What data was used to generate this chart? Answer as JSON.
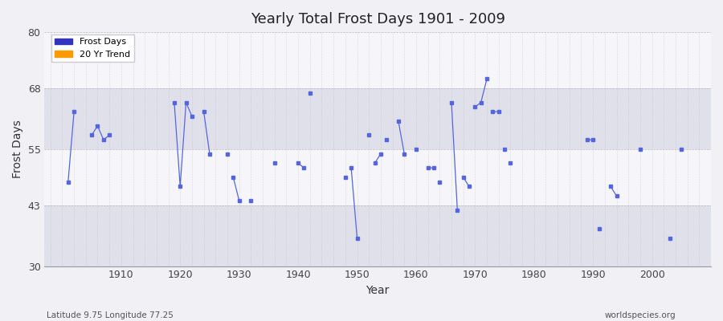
{
  "title": "Yearly Total Frost Days 1901 - 2009",
  "xlabel": "Year",
  "ylabel": "Frost Days",
  "subtitle": "Latitude 9.75 Longitude 77.25",
  "watermark": "worldspecies.org",
  "ylim": [
    30,
    80
  ],
  "yticks": [
    30,
    43,
    55,
    68,
    80
  ],
  "xticks": [
    1910,
    1920,
    1930,
    1940,
    1950,
    1960,
    1970,
    1980,
    1990,
    2000
  ],
  "legend_labels": [
    "Frost Days",
    "20 Yr Trend"
  ],
  "legend_colors": [
    "#3333bb",
    "#ff9900"
  ],
  "line_color": "#5566dd",
  "bg_color": "#f0f0f5",
  "plot_bg_light": "#f5f5fa",
  "plot_bg_dark": "#e0e0ea",
  "xlim": [
    1897,
    2010
  ],
  "data": [
    [
      1901,
      48
    ],
    [
      1902,
      63
    ],
    [
      null,
      null
    ],
    [
      1905,
      58
    ],
    [
      1906,
      60
    ],
    [
      1907,
      57
    ],
    [
      1908,
      58
    ],
    [
      null,
      null
    ],
    [
      1919,
      65
    ],
    [
      1920,
      47
    ],
    [
      1921,
      65
    ],
    [
      1922,
      62
    ],
    [
      null,
      null
    ],
    [
      1924,
      63
    ],
    [
      1925,
      54
    ],
    [
      null,
      null
    ],
    [
      1928,
      54
    ],
    [
      null,
      null
    ],
    [
      1929,
      49
    ],
    [
      1930,
      44
    ],
    [
      null,
      null
    ],
    [
      1932,
      44
    ],
    [
      null,
      null
    ],
    [
      1936,
      52
    ],
    [
      null,
      null
    ],
    [
      1940,
      52
    ],
    [
      1941,
      51
    ],
    [
      null,
      null
    ],
    [
      1942,
      67
    ],
    [
      null,
      null
    ],
    [
      1948,
      49
    ],
    [
      null,
      null
    ],
    [
      1949,
      51
    ],
    [
      1950,
      36
    ],
    [
      null,
      null
    ],
    [
      1952,
      58
    ],
    [
      null,
      null
    ],
    [
      1953,
      52
    ],
    [
      1954,
      54
    ],
    [
      null,
      null
    ],
    [
      1955,
      57
    ],
    [
      null,
      null
    ],
    [
      1957,
      61
    ],
    [
      1958,
      54
    ],
    [
      null,
      null
    ],
    [
      1960,
      55
    ],
    [
      null,
      null
    ],
    [
      1962,
      51
    ],
    [
      1963,
      51
    ],
    [
      null,
      null
    ],
    [
      1964,
      48
    ],
    [
      null,
      null
    ],
    [
      1966,
      65
    ],
    [
      1967,
      42
    ],
    [
      null,
      null
    ],
    [
      1968,
      49
    ],
    [
      1969,
      47
    ],
    [
      null,
      null
    ],
    [
      1970,
      64
    ],
    [
      1971,
      65
    ],
    [
      1972,
      70
    ],
    [
      null,
      null
    ],
    [
      1973,
      63
    ],
    [
      1974,
      63
    ],
    [
      null,
      null
    ],
    [
      1975,
      55
    ],
    [
      null,
      null
    ],
    [
      1976,
      52
    ],
    [
      null,
      null
    ],
    [
      1989,
      57
    ],
    [
      1990,
      57
    ],
    [
      null,
      null
    ],
    [
      1991,
      38
    ],
    [
      null,
      null
    ],
    [
      1993,
      47
    ],
    [
      1994,
      45
    ],
    [
      null,
      null
    ],
    [
      1998,
      55
    ],
    [
      null,
      null
    ],
    [
      2003,
      36
    ],
    [
      null,
      null
    ],
    [
      2005,
      55
    ]
  ]
}
